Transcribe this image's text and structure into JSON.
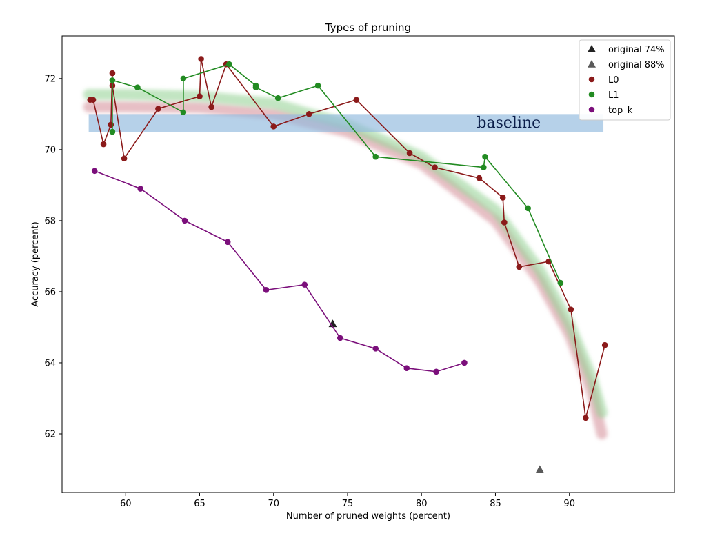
{
  "chart_data": {
    "type": "line",
    "title": "Types of pruning",
    "xlabel": "Number of pruned weights (percent)",
    "ylabel": "Accuracy (percent)",
    "xlim": [
      55.7,
      97.1
    ],
    "ylim": [
      60.35,
      73.2
    ],
    "xticks": [
      60,
      65,
      70,
      75,
      80,
      85,
      90
    ],
    "yticks": [
      62,
      64,
      66,
      68,
      70,
      72
    ],
    "grid": false,
    "legend_position": "top-right",
    "baseline_band": {
      "label": "baseline",
      "x_range": [
        57.5,
        92.3
      ],
      "y_range": [
        70.5,
        71.0
      ],
      "color": "#8fb8dd"
    },
    "trend_bands": [
      {
        "name": "L0 trend",
        "color": "#d48b95",
        "points": [
          [
            57.5,
            71.2
          ],
          [
            60,
            71.2
          ],
          [
            65,
            71.18
          ],
          [
            70,
            71.0
          ],
          [
            75,
            70.5
          ],
          [
            80,
            69.6
          ],
          [
            85,
            68.0
          ],
          [
            88,
            66.3
          ],
          [
            90,
            64.8
          ],
          [
            91.5,
            63.2
          ],
          [
            92.2,
            62.0
          ]
        ]
      },
      {
        "name": "L1 trend",
        "color": "#8fd08f",
        "points": [
          [
            57.5,
            71.55
          ],
          [
            60,
            71.55
          ],
          [
            65,
            71.5
          ],
          [
            70,
            71.3
          ],
          [
            75,
            70.7
          ],
          [
            80,
            69.8
          ],
          [
            85,
            68.3
          ],
          [
            88,
            66.6
          ],
          [
            90,
            65.1
          ],
          [
            91.5,
            63.6
          ],
          [
            92.2,
            62.6
          ]
        ]
      }
    ],
    "series": [
      {
        "name": "original 74%",
        "marker": "triangle",
        "line": false,
        "color": "#222222",
        "x": [
          74.0
        ],
        "y": [
          65.1
        ]
      },
      {
        "name": "original 88%",
        "marker": "triangle",
        "line": false,
        "color": "#5a5a5a",
        "x": [
          88.0
        ],
        "y": [
          61.0
        ]
      },
      {
        "name": "L0",
        "marker": "circle",
        "line": true,
        "color": "#8b1a1a",
        "x": [
          57.6,
          57.8,
          58.5,
          59.0,
          59.1,
          59.1,
          59.9,
          62.2,
          65.0,
          65.1,
          65.8,
          66.8,
          70.0,
          72.4,
          75.6,
          79.2,
          80.9,
          83.9,
          85.5,
          85.6,
          86.6,
          88.6,
          90.1,
          91.1,
          92.4
        ],
        "y": [
          71.4,
          71.4,
          70.15,
          70.7,
          72.15,
          71.8,
          69.75,
          71.15,
          71.5,
          72.55,
          71.2,
          72.4,
          70.65,
          71.0,
          71.4,
          69.9,
          69.5,
          69.2,
          68.65,
          67.95,
          66.7,
          66.85,
          65.5,
          62.45,
          64.5
        ]
      },
      {
        "name": "L1",
        "marker": "circle",
        "line": true,
        "color": "#228b22",
        "x": [
          59.1,
          59.1,
          60.8,
          63.9,
          63.9,
          67.0,
          68.8,
          68.8,
          70.3,
          73.0,
          76.9,
          84.2,
          84.3,
          87.2,
          89.4
        ],
        "y": [
          70.5,
          71.95,
          71.75,
          71.05,
          72.0,
          72.4,
          71.8,
          71.75,
          71.45,
          71.8,
          69.8,
          69.5,
          69.8,
          68.35,
          66.25
        ]
      },
      {
        "name": "top_k",
        "marker": "circle",
        "line": true,
        "color": "#7b0f7b",
        "x": [
          57.9,
          61.0,
          64.0,
          66.9,
          69.5,
          72.1,
          74.5,
          76.9,
          79.0,
          81.0,
          82.9
        ],
        "y": [
          69.4,
          68.9,
          68.0,
          67.4,
          66.05,
          66.2,
          64.7,
          64.4,
          63.85,
          63.75,
          64.0
        ]
      }
    ]
  }
}
